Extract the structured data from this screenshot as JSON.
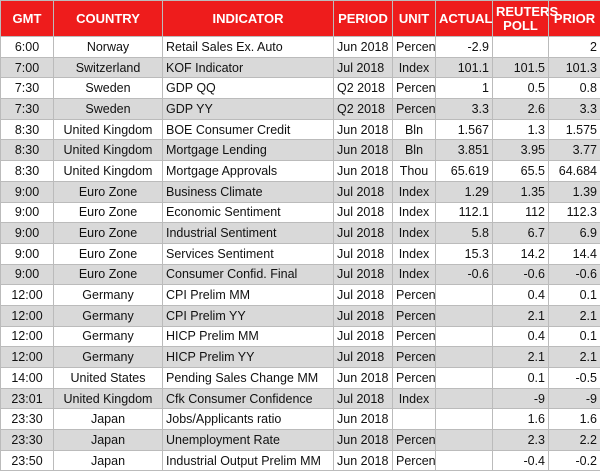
{
  "table": {
    "header": [
      "GMT",
      "COUNTRY",
      "INDICATOR",
      "PERIOD",
      "UNIT",
      "ACTUAL",
      "REUTERS POLL",
      "PRIOR"
    ],
    "rows": [
      [
        "6:00",
        "Norway",
        "Retail Sales Ex. Auto",
        "Jun 2018",
        "Percent",
        "-2.9",
        null,
        "2"
      ],
      [
        "7:00",
        "Switzerland",
        "KOF Indicator",
        "Jul 2018",
        "Index",
        "101.1",
        "101.5",
        "101.3"
      ],
      [
        "7:30",
        "Sweden",
        "GDP QQ",
        "Q2 2018",
        "Percent",
        "1",
        "0.5",
        "0.8"
      ],
      [
        "7:30",
        "Sweden",
        "GDP YY",
        "Q2 2018",
        "Percent",
        "3.3",
        "2.6",
        "3.3"
      ],
      [
        "8:30",
        "United Kingdom",
        "BOE Consumer Credit",
        "Jun 2018",
        "Bln",
        "1.567",
        "1.3",
        "1.575"
      ],
      [
        "8:30",
        "United Kingdom",
        "Mortgage Lending",
        "Jun 2018",
        "Bln",
        "3.851",
        "3.95",
        "3.77"
      ],
      [
        "8:30",
        "United Kingdom",
        "Mortgage Approvals",
        "Jun 2018",
        "Thou",
        "65.619",
        "65.5",
        "64.684"
      ],
      [
        "9:00",
        "Euro Zone",
        "Business Climate",
        "Jul 2018",
        "Index",
        "1.29",
        "1.35",
        "1.39"
      ],
      [
        "9:00",
        "Euro Zone",
        "Economic Sentiment",
        "Jul 2018",
        "Index",
        "112.1",
        "112",
        "112.3"
      ],
      [
        "9:00",
        "Euro Zone",
        "Industrial Sentiment",
        "Jul 2018",
        "Index",
        "5.8",
        "6.7",
        "6.9"
      ],
      [
        "9:00",
        "Euro Zone",
        "Services Sentiment",
        "Jul 2018",
        "Index",
        "15.3",
        "14.2",
        "14.4"
      ],
      [
        "9:00",
        "Euro Zone",
        "Consumer Confid. Final",
        "Jul 2018",
        "Index",
        "-0.6",
        "-0.6",
        "-0.6"
      ],
      [
        "12:00",
        "Germany",
        "CPI Prelim MM",
        "Jul 2018",
        "Percent",
        null,
        "0.4",
        "0.1"
      ],
      [
        "12:00",
        "Germany",
        "CPI Prelim YY",
        "Jul 2018",
        "Percent",
        null,
        "2.1",
        "2.1"
      ],
      [
        "12:00",
        "Germany",
        "HICP Prelim MM",
        "Jul 2018",
        "Percent",
        null,
        "0.4",
        "0.1"
      ],
      [
        "12:00",
        "Germany",
        "HICP Prelim YY",
        "Jul 2018",
        "Percent",
        null,
        "2.1",
        "2.1"
      ],
      [
        "14:00",
        "United States",
        "Pending Sales Change MM",
        "Jun 2018",
        "Percent",
        null,
        "0.1",
        "-0.5"
      ],
      [
        "23:01",
        "United Kingdom",
        "Cfk Consumer Confidence",
        "Jul 2018",
        "Index",
        null,
        "-9",
        "-9"
      ],
      [
        "23:30",
        "Japan",
        "Jobs/Applicants ratio",
        "Jun 2018",
        null,
        null,
        "1.6",
        "1.6"
      ],
      [
        "23:30",
        "Japan",
        "Unemployment Rate",
        "Jun 2018",
        "Percent",
        null,
        "2.3",
        "2.2"
      ],
      [
        "23:50",
        "Japan",
        "Industrial Output Prelim MM",
        "Jun 2018",
        "Percent",
        null,
        "-0.4",
        "-0.2"
      ]
    ]
  }
}
